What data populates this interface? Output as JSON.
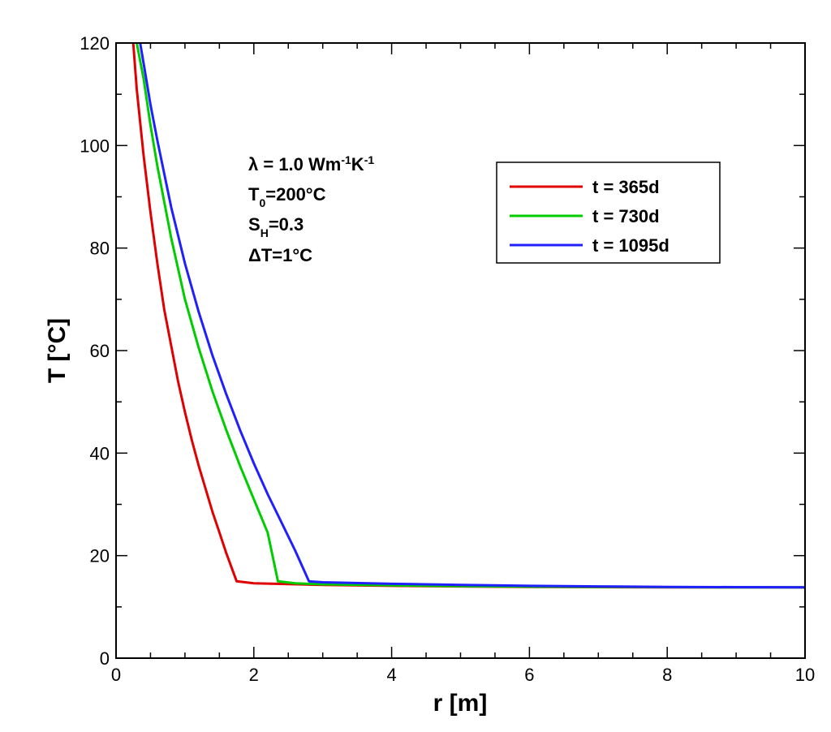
{
  "chart_data": {
    "type": "line",
    "xlabel": "r [m]",
    "ylabel": "T [°C]",
    "xlim": [
      0,
      10
    ],
    "ylim": [
      0,
      120
    ],
    "xticks": [
      0,
      2,
      4,
      6,
      8,
      10
    ],
    "xtick_labels": [
      "0",
      "2",
      "4",
      "6",
      "8",
      "10"
    ],
    "yticks": [
      0,
      20,
      40,
      60,
      80,
      100,
      120
    ],
    "ytick_labels": [
      "0",
      "20",
      "40",
      "60",
      "80",
      "100",
      "120"
    ],
    "x_minor_step": 0.5,
    "y_minor_step": 10,
    "grid": false,
    "legend_position": "top-right",
    "annotations": {
      "lambda": {
        "symbol": "λ",
        "text": " = 1.0 Wm",
        "sup1": "-1",
        "mid": "K",
        "sup2": "-1"
      },
      "t0": {
        "base": "T",
        "sub": "0",
        "rest": "=200°C"
      },
      "sh": {
        "base": "S",
        "sub": "H",
        "rest": "=0.3"
      },
      "dt": {
        "text": "ΔT=1°C"
      }
    },
    "series": [
      {
        "name": "t = 365d",
        "color": "#e00000",
        "x": [
          0.25,
          0.3,
          0.4,
          0.5,
          0.6,
          0.7,
          0.8,
          0.9,
          1.0,
          1.1,
          1.2,
          1.3,
          1.4,
          1.5,
          1.6,
          1.75,
          2.0,
          3.0,
          4.0,
          5.0,
          6.0,
          7.0,
          8.0,
          9.0,
          10.0
        ],
        "y": [
          120,
          111,
          98,
          87,
          77,
          68,
          61,
          54,
          48,
          42.5,
          37.5,
          33,
          28.5,
          24.5,
          20.5,
          15,
          14.6,
          14.3,
          14.1,
          14.0,
          13.9,
          13.85,
          13.8,
          13.8,
          13.8
        ]
      },
      {
        "name": "t = 730d",
        "color": "#00cc00",
        "x": [
          0.3,
          0.4,
          0.5,
          0.6,
          0.7,
          0.8,
          0.9,
          1.0,
          1.2,
          1.4,
          1.6,
          1.8,
          2.0,
          2.2,
          2.35,
          2.6,
          3.0,
          4.0,
          5.0,
          6.0,
          7.0,
          8.0,
          9.0,
          10.0
        ],
        "y": [
          120,
          113,
          104,
          96,
          89,
          82,
          76,
          70,
          60.5,
          52,
          44.5,
          37.5,
          31,
          24.5,
          15,
          14.6,
          14.4,
          14.2,
          14.05,
          13.95,
          13.9,
          13.85,
          13.8,
          13.8
        ]
      },
      {
        "name": "t = 1095d",
        "color": "#2020ff",
        "x": [
          0.35,
          0.4,
          0.5,
          0.6,
          0.7,
          0.8,
          1.0,
          1.2,
          1.4,
          1.6,
          1.8,
          2.0,
          2.2,
          2.4,
          2.6,
          2.8,
          3.0,
          4.0,
          5.0,
          6.0,
          7.0,
          8.0,
          9.0,
          10.0
        ],
        "y": [
          120,
          116,
          108,
          101,
          94.5,
          88,
          77,
          67.5,
          59,
          51.5,
          44.5,
          38,
          32,
          26.5,
          21,
          15,
          14.8,
          14.5,
          14.3,
          14.1,
          14.0,
          13.9,
          13.85,
          13.8
        ]
      }
    ]
  }
}
